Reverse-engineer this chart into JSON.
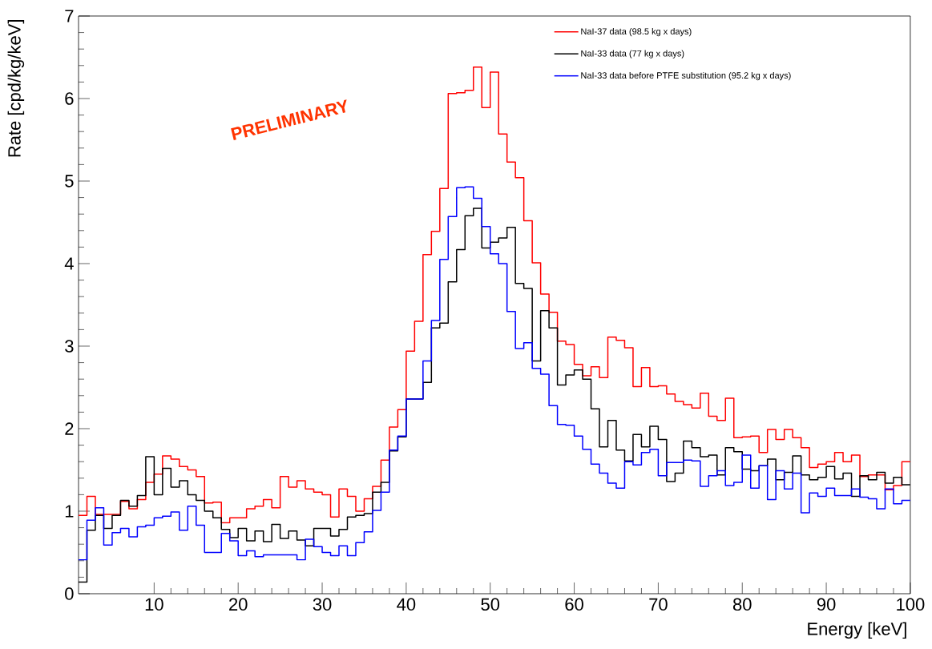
{
  "chart_data": {
    "type": "histogram",
    "xlabel": "Energy [keV]",
    "ylabel": "Rate [cpd/kg/keV]",
    "annotations": [
      "PRELIMINARY"
    ],
    "bins": [
      1,
      2,
      3,
      4,
      5,
      6,
      7,
      8,
      9,
      10,
      11,
      12,
      13,
      14,
      15,
      16,
      17,
      18,
      19,
      20,
      21,
      22,
      23,
      24,
      25,
      26,
      27,
      28,
      29,
      30,
      31,
      32,
      33,
      34,
      35,
      36,
      37,
      38,
      39,
      40,
      41,
      42,
      43,
      44,
      45,
      46,
      47,
      48,
      49,
      50,
      51,
      52,
      53,
      54,
      55,
      56,
      57,
      58,
      59,
      60,
      61,
      62,
      63,
      64,
      65,
      66,
      67,
      68,
      69,
      70,
      71,
      72,
      73,
      74,
      75,
      76,
      77,
      78,
      79,
      80,
      81,
      82,
      83,
      84,
      85,
      86,
      87,
      88,
      89,
      90,
      91,
      92,
      93,
      94,
      95,
      96,
      97,
      98,
      99,
      100
    ],
    "series": [
      {
        "name": "NaI-37 data (98.5 kg x days)",
        "color": "#ff0000",
        "values": [
          0.95,
          1.18,
          0.96,
          0.96,
          0.96,
          1.12,
          1.03,
          1.14,
          1.35,
          1.45,
          1.67,
          1.63,
          1.54,
          1.5,
          1.42,
          1.1,
          1.11,
          0.86,
          0.92,
          0.92,
          1.03,
          1.06,
          1.14,
          1.04,
          1.42,
          1.29,
          1.37,
          1.27,
          1.23,
          1.2,
          0.93,
          1.27,
          1.18,
          1.0,
          1.15,
          1.3,
          1.62,
          2.02,
          2.23,
          2.94,
          3.3,
          4.11,
          4.39,
          4.91,
          6.06,
          6.07,
          6.1,
          6.38,
          5.89,
          6.32,
          5.57,
          5.23,
          5.04,
          4.52,
          4.01,
          3.63,
          3.41,
          3.06,
          3.02,
          2.78,
          2.64,
          2.75,
          2.62,
          3.11,
          3.07,
          2.98,
          2.51,
          2.74,
          2.51,
          2.52,
          2.42,
          2.33,
          2.29,
          2.25,
          2.43,
          2.15,
          2.1,
          2.37,
          1.89,
          1.9,
          1.91,
          1.71,
          1.99,
          1.87,
          1.99,
          1.89,
          1.77,
          1.53,
          1.57,
          1.6,
          1.71,
          1.6,
          1.68,
          1.42,
          1.44,
          1.44,
          1.26,
          1.31,
          1.6
        ]
      },
      {
        "name": "NaI-33 data (77 kg x days)",
        "color": "#000000",
        "values": [
          0.14,
          0.77,
          0.95,
          0.79,
          0.95,
          1.13,
          1.06,
          1.19,
          1.66,
          1.2,
          1.52,
          1.29,
          1.37,
          1.2,
          1.13,
          1.0,
          0.92,
          0.78,
          0.68,
          0.79,
          0.64,
          0.76,
          0.63,
          0.84,
          0.67,
          0.76,
          0.65,
          0.58,
          0.79,
          0.79,
          0.7,
          0.78,
          0.93,
          0.95,
          0.97,
          1.23,
          1.35,
          1.73,
          1.9,
          2.36,
          2.36,
          2.56,
          3.22,
          3.28,
          3.78,
          4.17,
          4.58,
          4.67,
          4.19,
          4.26,
          4.31,
          4.44,
          3.76,
          3.7,
          2.82,
          3.43,
          3.22,
          2.53,
          2.65,
          2.71,
          2.6,
          2.24,
          1.78,
          2.1,
          1.74,
          1.61,
          1.93,
          1.78,
          2.03,
          1.87,
          1.36,
          1.46,
          1.85,
          1.77,
          1.66,
          1.68,
          1.44,
          1.77,
          1.72,
          1.51,
          1.49,
          1.55,
          1.63,
          1.38,
          1.47,
          1.67,
          1.44,
          1.38,
          1.41,
          1.54,
          1.39,
          1.46,
          1.18,
          1.43,
          1.38,
          1.47,
          1.34,
          1.41,
          1.32
        ]
      },
      {
        "name": "NaI-33 data before PTFE substitution (95.2 kg x days)",
        "color": "#0000ff",
        "values": [
          0.41,
          0.89,
          1.04,
          0.59,
          0.74,
          0.79,
          0.69,
          0.81,
          0.83,
          0.92,
          0.94,
          0.99,
          0.77,
          1.06,
          0.83,
          0.5,
          0.5,
          0.73,
          0.64,
          0.46,
          0.52,
          0.45,
          0.47,
          0.47,
          0.47,
          0.47,
          0.41,
          0.66,
          0.57,
          0.5,
          0.46,
          0.58,
          0.46,
          0.62,
          0.75,
          1.01,
          1.23,
          1.74,
          1.91,
          2.36,
          2.36,
          2.82,
          3.31,
          4.05,
          4.57,
          4.92,
          4.93,
          4.79,
          4.45,
          4.12,
          4.0,
          3.42,
          2.97,
          3.04,
          2.73,
          2.66,
          2.28,
          2.05,
          2.04,
          1.91,
          1.75,
          1.57,
          1.46,
          1.34,
          1.28,
          1.6,
          1.56,
          1.71,
          1.75,
          1.43,
          1.59,
          1.59,
          1.62,
          1.61,
          1.3,
          1.43,
          1.49,
          1.31,
          1.35,
          1.68,
          1.28,
          1.55,
          1.14,
          1.49,
          1.27,
          1.46,
          0.98,
          1.22,
          1.18,
          1.28,
          1.19,
          1.19,
          1.27,
          1.17,
          1.15,
          1.03,
          1.27,
          1.09,
          1.13
        ]
      }
    ],
    "xlim": [
      1,
      100
    ],
    "ylim": [
      0,
      7
    ],
    "xticks": [
      10,
      20,
      30,
      40,
      50,
      60,
      70,
      80,
      90,
      100
    ],
    "yticks": [
      0,
      1,
      2,
      3,
      4,
      5,
      6,
      7
    ],
    "grid": false,
    "legend": "top right"
  }
}
